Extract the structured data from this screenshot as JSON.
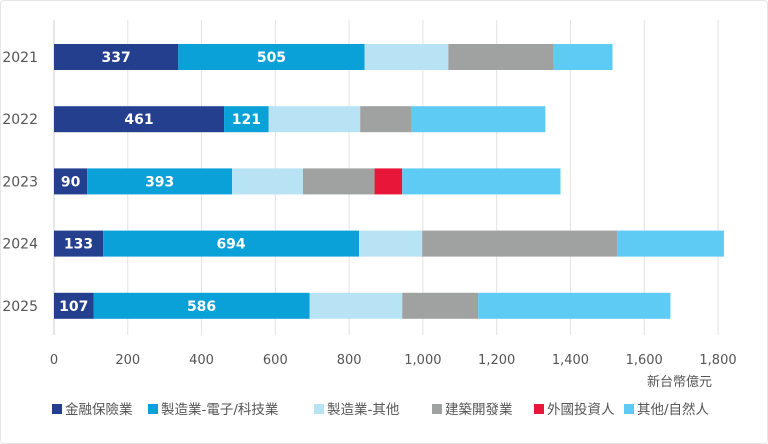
{
  "chart_data": {
    "type": "bar",
    "orientation": "horizontal",
    "stacked": true,
    "categories": [
      "2021",
      "2022",
      "2023",
      "2024",
      "2025"
    ],
    "unit_label": "新台幣億元",
    "xlim": [
      0,
      1800
    ],
    "x_ticks": [
      0,
      200,
      400,
      600,
      800,
      1000,
      1200,
      1400,
      1600,
      1800
    ],
    "x_tick_labels": [
      "0",
      "200",
      "400",
      "600",
      "800",
      "1,000",
      "1,200",
      "1,400",
      "1,600",
      "1,800"
    ],
    "grid": "vertical",
    "legend_position": "bottom",
    "series": [
      {
        "name": "金融保險業",
        "color": "#253f8f",
        "values": [
          337,
          461,
          90,
          133,
          107
        ],
        "labeled": true
      },
      {
        "name": "製造業-電子/科技業",
        "color": "#0aa0d8",
        "values": [
          505,
          121,
          393,
          694,
          586
        ],
        "labeled": true
      },
      {
        "name": "製造業-其他",
        "color": "#b8e3f5",
        "values": [
          227,
          248,
          192,
          171,
          251
        ],
        "labeled": false
      },
      {
        "name": "建築開發業",
        "color": "#a0a2a2",
        "values": [
          286,
          140,
          194,
          529,
          206
        ],
        "labeled": false
      },
      {
        "name": "外國投資人",
        "color": "#e8173a",
        "values": [
          0,
          0,
          75,
          0,
          0
        ],
        "labeled": false
      },
      {
        "name": "其他/自然人",
        "color": "#5ecbf5",
        "values": [
          159,
          362,
          429,
          289,
          521
        ],
        "labeled": false
      }
    ]
  }
}
